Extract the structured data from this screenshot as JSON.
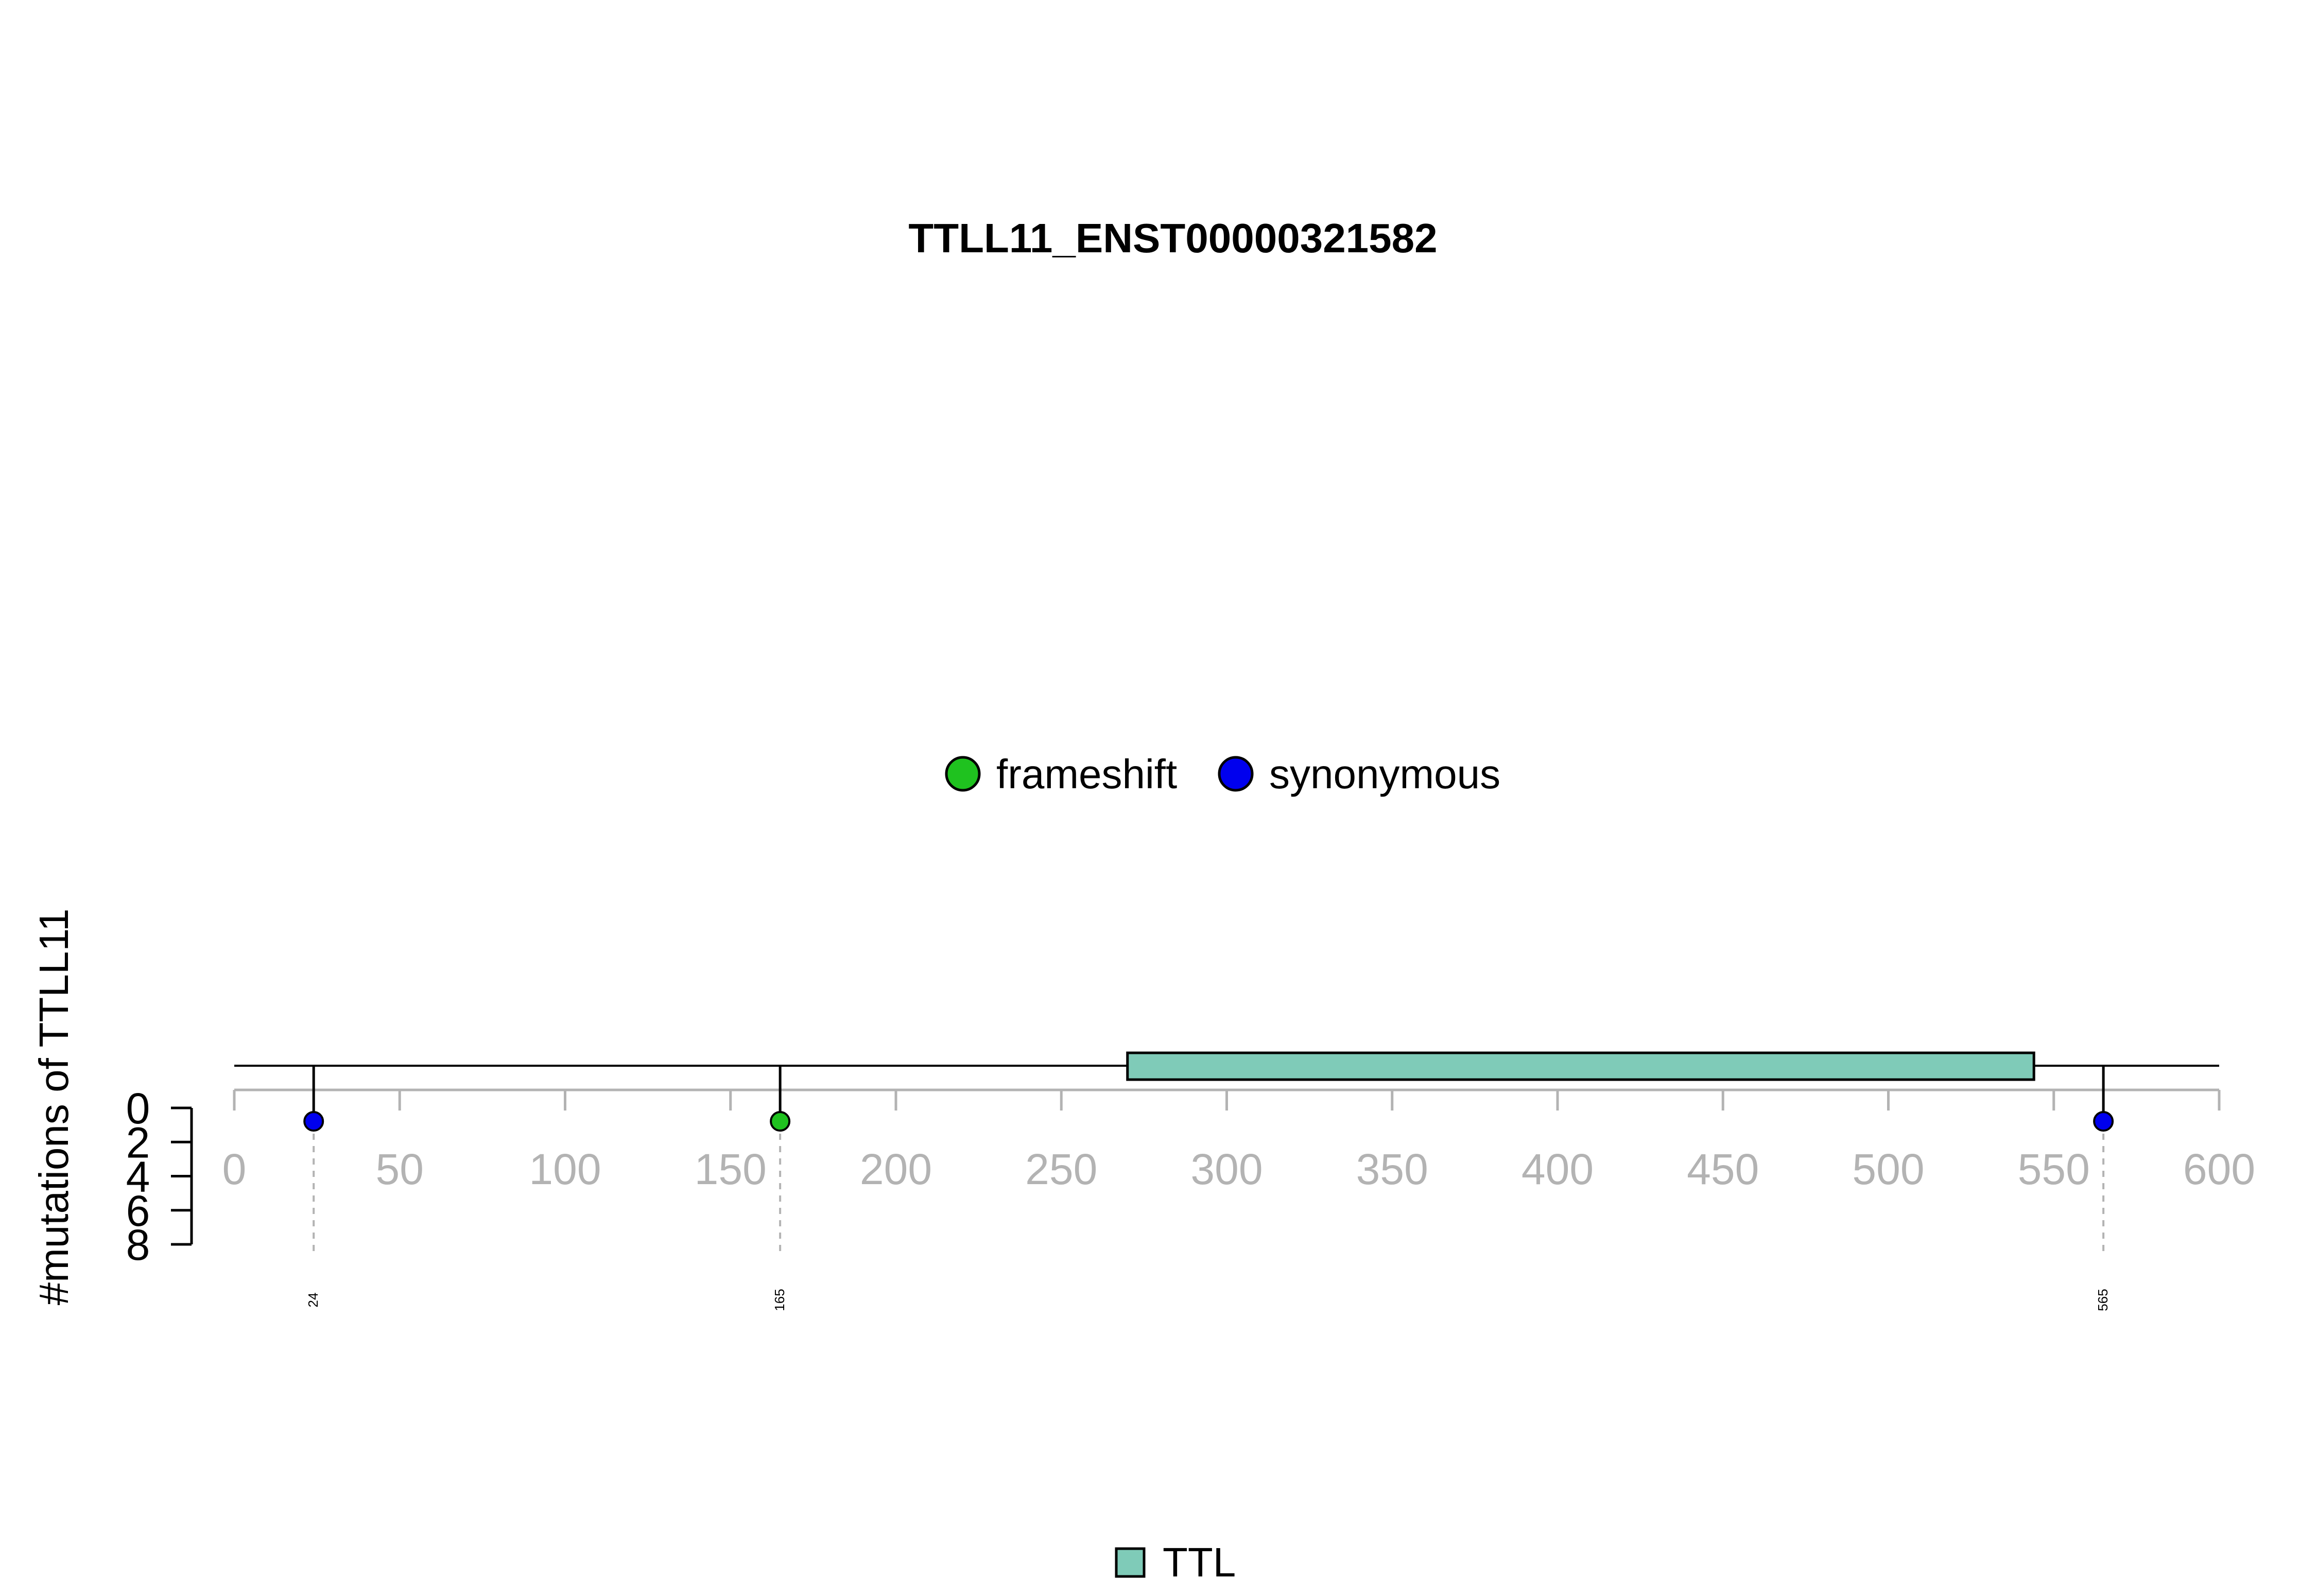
{
  "chart_data": {
    "type": "lollipop",
    "title": "TTLL11_ENST00000321582",
    "ylabel": "#mutations of TTLL11",
    "x_axis": {
      "range": [
        0,
        600
      ],
      "ticks": [
        0,
        50,
        100,
        150,
        200,
        250,
        300,
        350,
        400,
        450,
        500,
        550,
        600
      ]
    },
    "y_axis": {
      "range": [
        0,
        8
      ],
      "ticks": [
        0,
        2,
        4,
        6,
        8
      ],
      "inverted": true
    },
    "protein_length": 600,
    "domains": [
      {
        "name": "TTL",
        "start": 270,
        "end": 544,
        "color": "#7fcbb8"
      }
    ],
    "mutations": [
      {
        "position": 24,
        "count": 1,
        "type": "synonymous",
        "label": "24"
      },
      {
        "position": 165,
        "count": 1,
        "type": "frameshift",
        "label": "165"
      },
      {
        "position": 565,
        "count": 1,
        "type": "synonymous",
        "label": "565"
      }
    ],
    "mutation_legend": [
      {
        "label": "frameshift",
        "color": "#1fc21f"
      },
      {
        "label": "synonymous",
        "color": "#0000ee"
      }
    ],
    "domain_legend": [
      {
        "label": "TTL",
        "color": "#7fcbb8"
      }
    ],
    "colors": {
      "axis_gray": "#b3b3b3",
      "stroke": "#000000"
    }
  }
}
